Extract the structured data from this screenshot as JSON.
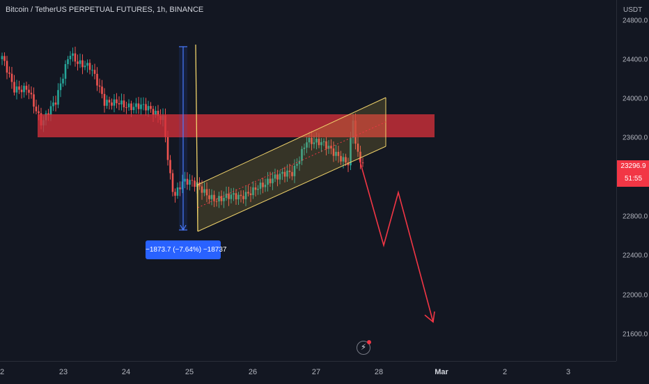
{
  "header": {
    "title": "Bitcoin / TetherUS PERPETUAL FUTURES, 1h, BINANCE"
  },
  "price_axis": {
    "unit": "USDT",
    "ticks": [
      "24800.0",
      "24400.0",
      "24000.0",
      "23600.0",
      "22800.0",
      "22400.0",
      "22000.0",
      "21600.0"
    ],
    "last_price": "23296.9",
    "countdown": "51:55"
  },
  "time_axis": {
    "ticks": [
      "2",
      "23",
      "24",
      "25",
      "26",
      "27",
      "28",
      "Mar",
      "2",
      "3"
    ]
  },
  "measure": {
    "label": "−1873.7 (−7.64%) −18737"
  },
  "colors": {
    "background": "#131722",
    "up_candle": "#26a69a",
    "down_candle": "#ef5350",
    "resistance_zone": "#d32f3a",
    "channel": "#f0d36b",
    "projection": "#f23645",
    "measure": "#2962ff"
  },
  "icons": {
    "flash": "lightning-icon"
  }
}
